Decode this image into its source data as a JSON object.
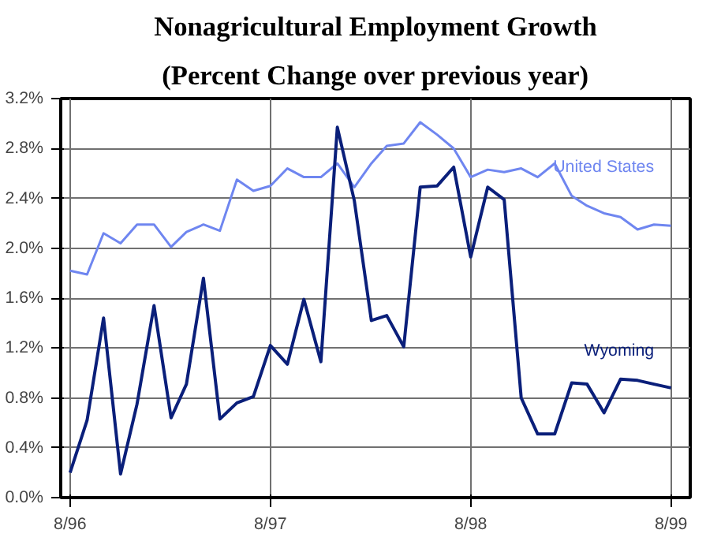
{
  "chart_data": {
    "type": "line",
    "title": "Nonagricultural Employment Growth",
    "subtitle": "(Percent Change over previous year)",
    "x": [
      "1996-08",
      "1996-09",
      "1996-10",
      "1996-11",
      "1996-12",
      "1997-01",
      "1997-02",
      "1997-03",
      "1997-04",
      "1997-05",
      "1997-06",
      "1997-07",
      "1997-08",
      "1997-09",
      "1997-10",
      "1997-11",
      "1997-12",
      "1998-01",
      "1998-02",
      "1998-03",
      "1998-04",
      "1998-05",
      "1998-06",
      "1998-07",
      "1998-08",
      "1998-09",
      "1998-10",
      "1998-11",
      "1998-12",
      "1999-01",
      "1999-02",
      "1999-03",
      "1999-04",
      "1999-05",
      "1999-06",
      "1999-07",
      "1999-08"
    ],
    "series": [
      {
        "name": "United States",
        "color": "#6f86f0",
        "values": [
          1.82,
          1.79,
          2.12,
          2.04,
          2.19,
          2.19,
          2.01,
          2.13,
          2.19,
          2.14,
          2.55,
          2.46,
          2.5,
          2.64,
          2.57,
          2.57,
          2.68,
          2.49,
          2.68,
          2.82,
          2.84,
          3.01,
          2.91,
          2.8,
          2.57,
          2.63,
          2.61,
          2.64,
          2.57,
          2.68,
          2.42,
          2.34,
          2.28,
          2.25,
          2.15,
          2.19,
          2.18
        ]
      },
      {
        "name": "Wyoming",
        "color": "#0a1f7a",
        "values": [
          0.2,
          0.62,
          1.44,
          0.19,
          0.75,
          1.54,
          0.64,
          0.91,
          1.76,
          0.63,
          0.76,
          0.81,
          1.22,
          1.07,
          1.59,
          1.09,
          2.97,
          2.38,
          1.42,
          1.46,
          1.21,
          2.49,
          2.5,
          2.65,
          1.93,
          2.49,
          2.39,
          0.8,
          0.51,
          0.51,
          0.92,
          0.91,
          0.68,
          0.95,
          0.94,
          0.91,
          0.88
        ]
      }
    ],
    "xlim": [
      "1996-07-15",
      "1999-09-05"
    ],
    "xticks": [
      {
        "value": "1996-08",
        "label": "8/96"
      },
      {
        "value": "1997-08",
        "label": "8/97"
      },
      {
        "value": "1998-08",
        "label": "8/98"
      },
      {
        "value": "1999-08",
        "label": "8/99"
      }
    ],
    "ylim": [
      0,
      3.2
    ],
    "yticks": [
      {
        "value": 0,
        "label": "0.0%"
      },
      {
        "value": 0.4,
        "label": "0.4%"
      },
      {
        "value": 0.8,
        "label": "0.8%"
      },
      {
        "value": 1.2,
        "label": "1.2%"
      },
      {
        "value": 1.6,
        "label": "1.6%"
      },
      {
        "value": 2.0,
        "label": "2.0%"
      },
      {
        "value": 2.4,
        "label": "2.4%"
      },
      {
        "value": 2.8,
        "label": "2.8%"
      },
      {
        "value": 3.2,
        "label": "3.2%"
      }
    ],
    "grid": true,
    "marker": "none",
    "line_style": "solid"
  }
}
